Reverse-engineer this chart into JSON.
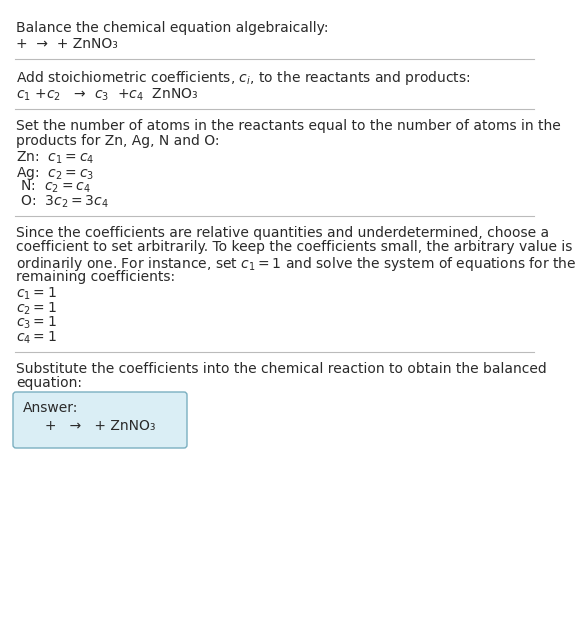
{
  "title_text": "Balance the chemical equation algebraically:",
  "section1_line1": "+  →  + ZnNO₃",
  "section2_header_plain": "Add stoichiometric coefficients, ",
  "section2_header_ci": "$c_i$",
  "section2_header_end": ", to the reactants and products:",
  "section2_line1": "$c_1$ +$c_2$   →  $c_3$  +$c_4$  ZnNO₃",
  "section3_header1": "Set the number of atoms in the reactants equal to the number of atoms in the",
  "section3_header2": "products for Zn, Ag, N and O:",
  "section3_lines": [
    [
      "Zn:  ",
      "$c_1 = c_4$"
    ],
    [
      "Ag:  ",
      "$c_2 = c_3$"
    ],
    [
      " N:  ",
      "$c_2 = c_4$"
    ],
    [
      " O:  ",
      "$3 c_2 = 3 c_4$"
    ]
  ],
  "section4_header1": "Since the coefficients are relative quantities and underdetermined, choose a",
  "section4_header2": "coefficient to set arbitrarily. To keep the coefficients small, the arbitrary value is",
  "section4_header3": "ordinarily one. For instance, set $c_1 = 1$ and solve the system of equations for the",
  "section4_header4": "remaining coefficients:",
  "section4_lines": [
    "$c_1 = 1$",
    "$c_2 = 1$",
    "$c_3 = 1$",
    "$c_4 = 1$"
  ],
  "section5_header1": "Substitute the coefficients into the chemical reaction to obtain the balanced",
  "section5_header2": "equation:",
  "answer_label": "Answer:",
  "answer_eq": "     +   →   + ZnNO₃",
  "bg_color": "#ffffff",
  "text_color": "#2a2a2a",
  "line_color": "#bbbbbb",
  "answer_box_facecolor": "#daeef5",
  "answer_box_edgecolor": "#7aafc0"
}
